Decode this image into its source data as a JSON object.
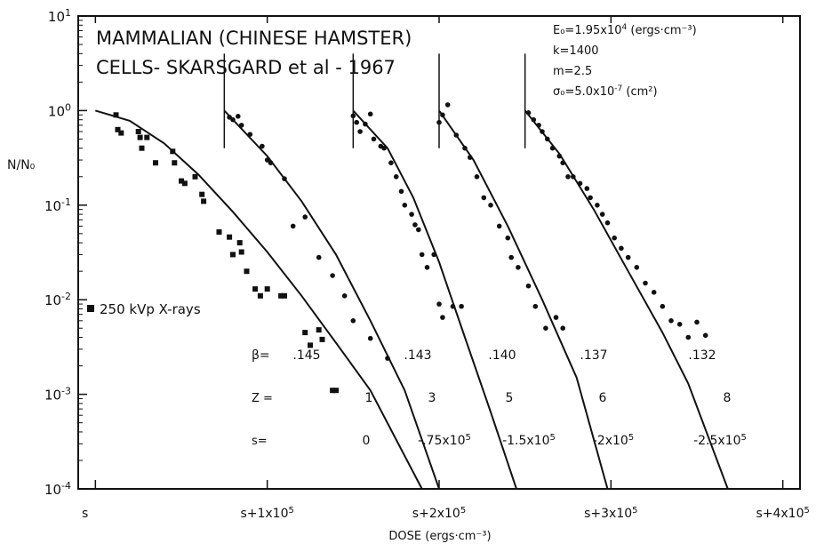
{
  "chart_data": {
    "type": "scatter",
    "title_lines": [
      "MAMMALIAN (CHINESE  HAMSTER)",
      "CELLS-  SKARSGARD  et  al - 1967"
    ],
    "ylabel": "N/N₀",
    "xlabel": "DOSE (ergs·cm⁻³)",
    "y_scale": "log",
    "ylim": [
      0.0001,
      10
    ],
    "xlim": [
      -10000,
      410000
    ],
    "y_ticks": [
      {
        "value": 10,
        "base": "10",
        "exp": "1"
      },
      {
        "value": 1,
        "base": "10",
        "exp": "0"
      },
      {
        "value": 0.1,
        "base": "10",
        "exp": "-1"
      },
      {
        "value": 0.01,
        "base": "10",
        "exp": "-2"
      },
      {
        "value": 0.001,
        "base": "10",
        "exp": "-3"
      },
      {
        "value": 0.0001,
        "base": "10",
        "exp": "-4"
      }
    ],
    "x_ticks": [
      {
        "value": 0,
        "label": "s",
        "exp": ""
      },
      {
        "value": 100000,
        "label": "s+1x10",
        "exp": "5"
      },
      {
        "value": 200000,
        "label": "s+2x10",
        "exp": "5"
      },
      {
        "value": 300000,
        "label": "s+3x10",
        "exp": "5"
      },
      {
        "value": 400000,
        "label": "s+4x10",
        "exp": "5"
      }
    ],
    "parameters": [
      {
        "label": "E₀=1.95x10",
        "exp": "4",
        "unit": "(ergs·cm⁻³)"
      },
      {
        "label": "k=1400",
        "exp": "",
        "unit": ""
      },
      {
        "label": "m=2.5",
        "exp": "",
        "unit": ""
      },
      {
        "label": "σ₀=5.0x10",
        "exp": "-7",
        "unit": "(cm²)"
      }
    ],
    "legend": {
      "marker": "square",
      "label": "250 kVp  X-rays"
    },
    "row_labels": {
      "beta": "β=",
      "z": "Z =",
      "s": "s="
    },
    "series": [
      {
        "beta": ".145",
        "z": "1",
        "s": "0",
        "origin": 0,
        "curve": [
          [
            0,
            1.0
          ],
          [
            20000,
            0.78
          ],
          [
            40000,
            0.45
          ],
          [
            60000,
            0.21
          ],
          [
            80000,
            0.085
          ],
          [
            100000,
            0.032
          ],
          [
            120000,
            0.011
          ],
          [
            140000,
            0.0035
          ],
          [
            160000,
            0.0011
          ],
          [
            190000,
            0.0001
          ]
        ],
        "points": [
          [
            12000,
            0.9
          ],
          [
            13000,
            0.63
          ],
          [
            15000,
            0.58
          ],
          [
            25000,
            0.6
          ],
          [
            26000,
            0.52
          ],
          [
            27000,
            0.4
          ],
          [
            30000,
            0.52
          ],
          [
            35000,
            0.28
          ],
          [
            45000,
            0.37
          ],
          [
            46000,
            0.28
          ],
          [
            50000,
            0.18
          ],
          [
            52000,
            0.17
          ],
          [
            58000,
            0.2
          ],
          [
            62000,
            0.13
          ],
          [
            63000,
            0.11
          ],
          [
            72000,
            0.052
          ],
          [
            78000,
            0.046
          ],
          [
            80000,
            0.03
          ],
          [
            84000,
            0.04
          ],
          [
            85000,
            0.032
          ],
          [
            88000,
            0.02
          ],
          [
            93000,
            0.013
          ],
          [
            96000,
            0.011
          ],
          [
            100000,
            0.013
          ],
          [
            108000,
            0.011
          ],
          [
            110000,
            0.011
          ],
          [
            122000,
            0.0045
          ],
          [
            125000,
            0.0033
          ],
          [
            130000,
            0.0048
          ],
          [
            132000,
            0.0038
          ],
          [
            138000,
            0.0011
          ],
          [
            140000,
            0.0011
          ]
        ]
      },
      {
        "beta": ".143",
        "z": "3",
        "s": "-.75x10",
        "s_exp": "5",
        "origin": 75000,
        "curve": [
          [
            75000,
            1.0
          ],
          [
            100000,
            0.33
          ],
          [
            120000,
            0.11
          ],
          [
            140000,
            0.03
          ],
          [
            160000,
            0.006
          ],
          [
            180000,
            0.0011
          ],
          [
            200000,
            0.0001
          ]
        ],
        "points": [
          [
            78000,
            0.85
          ],
          [
            80000,
            0.8
          ],
          [
            83000,
            0.87
          ],
          [
            85000,
            0.7
          ],
          [
            90000,
            0.56
          ],
          [
            97000,
            0.42
          ],
          [
            100000,
            0.3
          ],
          [
            102000,
            0.28
          ],
          [
            110000,
            0.19
          ],
          [
            115000,
            0.06
          ],
          [
            122000,
            0.075
          ],
          [
            130000,
            0.028
          ],
          [
            138000,
            0.018
          ],
          [
            145000,
            0.011
          ],
          [
            150000,
            0.006
          ],
          [
            160000,
            0.0039
          ],
          [
            170000,
            0.0024
          ]
        ]
      },
      {
        "beta": ".140",
        "z": "5",
        "s": "-1.5x10",
        "s_exp": "5",
        "origin": 150000,
        "curve": [
          [
            150000,
            1.0
          ],
          [
            170000,
            0.4
          ],
          [
            185000,
            0.12
          ],
          [
            200000,
            0.025
          ],
          [
            215000,
            0.004
          ],
          [
            230000,
            0.00065
          ],
          [
            245000,
            0.0001
          ]
        ],
        "points": [
          [
            150000,
            0.88
          ],
          [
            152000,
            0.75
          ],
          [
            154000,
            0.6
          ],
          [
            157000,
            0.72
          ],
          [
            160000,
            0.92
          ],
          [
            162000,
            0.5
          ],
          [
            166000,
            0.42
          ],
          [
            168000,
            0.4
          ],
          [
            172000,
            0.28
          ],
          [
            175000,
            0.2
          ],
          [
            178000,
            0.14
          ],
          [
            180000,
            0.1
          ],
          [
            184000,
            0.08
          ],
          [
            186000,
            0.062
          ],
          [
            188000,
            0.055
          ],
          [
            190000,
            0.03
          ],
          [
            193000,
            0.022
          ],
          [
            197000,
            0.03
          ],
          [
            200000,
            0.009
          ],
          [
            202000,
            0.0065
          ],
          [
            208000,
            0.0085
          ],
          [
            213000,
            0.0085
          ]
        ]
      },
      {
        "beta": ".137",
        "z": "6",
        "s": "-2x10",
        "s_exp": "5",
        "origin": 200000,
        "curve": [
          [
            200000,
            1.0
          ],
          [
            220000,
            0.3
          ],
          [
            240000,
            0.06
          ],
          [
            260000,
            0.01
          ],
          [
            280000,
            0.0015
          ],
          [
            298000,
            0.0001
          ]
        ],
        "points": [
          [
            200000,
            0.75
          ],
          [
            202000,
            0.9
          ],
          [
            205000,
            1.15
          ],
          [
            210000,
            0.55
          ],
          [
            215000,
            0.4
          ],
          [
            218000,
            0.32
          ],
          [
            222000,
            0.2
          ],
          [
            226000,
            0.12
          ],
          [
            230000,
            0.1
          ],
          [
            235000,
            0.06
          ],
          [
            240000,
            0.045
          ],
          [
            242000,
            0.028
          ],
          [
            246000,
            0.022
          ],
          [
            252000,
            0.014
          ],
          [
            256000,
            0.0085
          ],
          [
            262000,
            0.005
          ],
          [
            268000,
            0.0065
          ],
          [
            272000,
            0.005
          ]
        ]
      },
      {
        "beta": ".132",
        "z": "8",
        "s": "-2.5x10",
        "s_exp": "5",
        "origin": 250000,
        "curve": [
          [
            250000,
            1.0
          ],
          [
            270000,
            0.35
          ],
          [
            290000,
            0.09
          ],
          [
            310000,
            0.02
          ],
          [
            330000,
            0.0045
          ],
          [
            345000,
            0.0013
          ],
          [
            368000,
            0.0001
          ]
        ],
        "points": [
          [
            252000,
            0.95
          ],
          [
            255000,
            0.8
          ],
          [
            258000,
            0.7
          ],
          [
            260000,
            0.6
          ],
          [
            263000,
            0.5
          ],
          [
            266000,
            0.4
          ],
          [
            270000,
            0.33
          ],
          [
            272000,
            0.28
          ],
          [
            275000,
            0.2
          ],
          [
            278000,
            0.2
          ],
          [
            282000,
            0.17
          ],
          [
            286000,
            0.15
          ],
          [
            288000,
            0.12
          ],
          [
            292000,
            0.1
          ],
          [
            295000,
            0.08
          ],
          [
            298000,
            0.065
          ],
          [
            302000,
            0.045
          ],
          [
            306000,
            0.035
          ],
          [
            310000,
            0.028
          ],
          [
            315000,
            0.022
          ],
          [
            320000,
            0.015
          ],
          [
            325000,
            0.012
          ],
          [
            330000,
            0.0085
          ],
          [
            335000,
            0.006
          ],
          [
            340000,
            0.0055
          ],
          [
            345000,
            0.004
          ],
          [
            350000,
            0.0058
          ],
          [
            355000,
            0.0042
          ]
        ]
      }
    ]
  }
}
